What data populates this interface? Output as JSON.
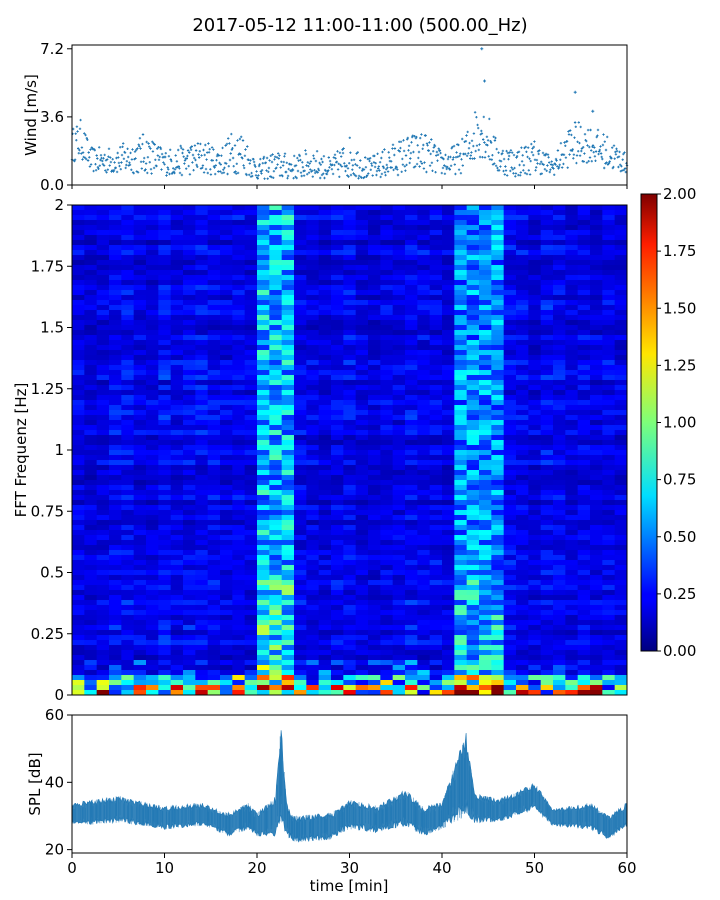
{
  "title": "2017-05-12 11:00-11:00 (500.00_Hz)",
  "chart_data": [
    {
      "type": "scatter",
      "ylabel": "Wind [m/s]",
      "ylim": [
        0,
        7.4
      ],
      "yticks": [
        "0.0",
        "3.6",
        "7.2"
      ],
      "color": "#1f77b4",
      "xlim": [
        0,
        60
      ],
      "envelope": [
        {
          "x": 0,
          "low": 1.2,
          "high": 3.0
        },
        {
          "x": 1,
          "low": 1.4,
          "high": 3.5
        },
        {
          "x": 2,
          "low": 0.7,
          "high": 2.0
        },
        {
          "x": 4,
          "low": 0.6,
          "high": 2.0
        },
        {
          "x": 6,
          "low": 0.6,
          "high": 2.3
        },
        {
          "x": 8,
          "low": 0.6,
          "high": 2.8
        },
        {
          "x": 10,
          "low": 0.5,
          "high": 1.9
        },
        {
          "x": 12,
          "low": 0.5,
          "high": 2.1
        },
        {
          "x": 14,
          "low": 0.6,
          "high": 2.4
        },
        {
          "x": 16,
          "low": 0.5,
          "high": 2.0
        },
        {
          "x": 18,
          "low": 0.6,
          "high": 3.3
        },
        {
          "x": 20,
          "low": 0.3,
          "high": 1.3
        },
        {
          "x": 22,
          "low": 0.3,
          "high": 1.8
        },
        {
          "x": 24,
          "low": 0.3,
          "high": 1.6
        },
        {
          "x": 26,
          "low": 0.4,
          "high": 2.0
        },
        {
          "x": 28,
          "low": 0.3,
          "high": 1.4
        },
        {
          "x": 30,
          "low": 0.4,
          "high": 2.6
        },
        {
          "x": 32,
          "low": 0.3,
          "high": 1.4
        },
        {
          "x": 34,
          "low": 0.4,
          "high": 2.0
        },
        {
          "x": 36,
          "low": 0.6,
          "high": 2.6
        },
        {
          "x": 38,
          "low": 0.7,
          "high": 2.9
        },
        {
          "x": 40,
          "low": 0.5,
          "high": 1.8
        },
        {
          "x": 42,
          "low": 0.6,
          "high": 2.3
        },
        {
          "x": 43,
          "low": 1.0,
          "high": 3.2
        },
        {
          "x": 44,
          "low": 1.5,
          "high": 4.8
        },
        {
          "x": 45,
          "low": 1.2,
          "high": 3.8
        },
        {
          "x": 46,
          "low": 0.6,
          "high": 2.2
        },
        {
          "x": 48,
          "low": 0.4,
          "high": 2.0
        },
        {
          "x": 50,
          "low": 0.6,
          "high": 2.4
        },
        {
          "x": 52,
          "low": 0.5,
          "high": 1.4
        },
        {
          "x": 54,
          "low": 1.0,
          "high": 3.4
        },
        {
          "x": 56,
          "low": 1.2,
          "high": 3.2
        },
        {
          "x": 58,
          "low": 0.8,
          "high": 2.6
        },
        {
          "x": 60,
          "low": 0.6,
          "high": 1.6
        }
      ],
      "outliers": [
        {
          "x": 44.3,
          "y": 7.2
        },
        {
          "x": 44.6,
          "y": 5.5
        },
        {
          "x": 54.4,
          "y": 4.9
        },
        {
          "x": 56.3,
          "y": 3.9
        }
      ]
    },
    {
      "type": "heatmap",
      "ylabel": "FFT Frequenz [Hz]",
      "ylim": [
        0,
        2
      ],
      "yticks": [
        "0",
        "0.25",
        "0.5",
        "0.75",
        "1",
        "1.25",
        "1.5",
        "1.75",
        "2"
      ],
      "xlim": [
        0,
        60
      ],
      "colormap": "jet",
      "colorbar_ticks": [
        "0.00",
        "0.25",
        "0.50",
        "0.75",
        "1.00",
        "1.25",
        "1.50",
        "1.75",
        "2.00"
      ],
      "clim": [
        0,
        2
      ],
      "background_level": 0.2,
      "bright_bands": [
        {
          "x_start": 20.5,
          "x_end": 24.0,
          "level": 0.65
        },
        {
          "x_start": 42.0,
          "x_end": 46.0,
          "level": 0.55
        }
      ],
      "low_frequency_peak_level": 1.7
    },
    {
      "type": "line",
      "ylabel": "SPL [dB]",
      "xlabel": "time [min]",
      "ylim": [
        19,
        60
      ],
      "yticks": [
        "20",
        "40",
        "60"
      ],
      "xticks": [
        "0",
        "10",
        "20",
        "30",
        "40",
        "50",
        "60"
      ],
      "xlim": [
        0,
        60
      ],
      "color": "#1f77b4",
      "envelope": [
        {
          "x": 0,
          "low": 27,
          "high": 34
        },
        {
          "x": 5,
          "low": 28,
          "high": 36
        },
        {
          "x": 8,
          "low": 27,
          "high": 34
        },
        {
          "x": 10,
          "low": 26,
          "high": 33
        },
        {
          "x": 14,
          "low": 27,
          "high": 34
        },
        {
          "x": 17,
          "low": 24,
          "high": 31
        },
        {
          "x": 19,
          "low": 26,
          "high": 34
        },
        {
          "x": 20,
          "low": 24,
          "high": 31
        },
        {
          "x": 22,
          "low": 24,
          "high": 36
        },
        {
          "x": 22.6,
          "low": 28,
          "high": 58
        },
        {
          "x": 23.2,
          "low": 24,
          "high": 34
        },
        {
          "x": 24,
          "low": 22,
          "high": 30
        },
        {
          "x": 28,
          "low": 23,
          "high": 31
        },
        {
          "x": 30,
          "low": 26,
          "high": 35
        },
        {
          "x": 33,
          "low": 25,
          "high": 33
        },
        {
          "x": 36,
          "low": 27,
          "high": 38
        },
        {
          "x": 38,
          "low": 24,
          "high": 33
        },
        {
          "x": 40,
          "low": 26,
          "high": 34
        },
        {
          "x": 42.6,
          "low": 30,
          "high": 55
        },
        {
          "x": 43.5,
          "low": 28,
          "high": 37
        },
        {
          "x": 46,
          "low": 28,
          "high": 35
        },
        {
          "x": 48,
          "low": 30,
          "high": 37
        },
        {
          "x": 50,
          "low": 32,
          "high": 40
        },
        {
          "x": 52,
          "low": 27,
          "high": 32
        },
        {
          "x": 56,
          "low": 26,
          "high": 34
        },
        {
          "x": 58,
          "low": 23,
          "high": 30
        },
        {
          "x": 60,
          "low": 27,
          "high": 34
        }
      ]
    }
  ]
}
